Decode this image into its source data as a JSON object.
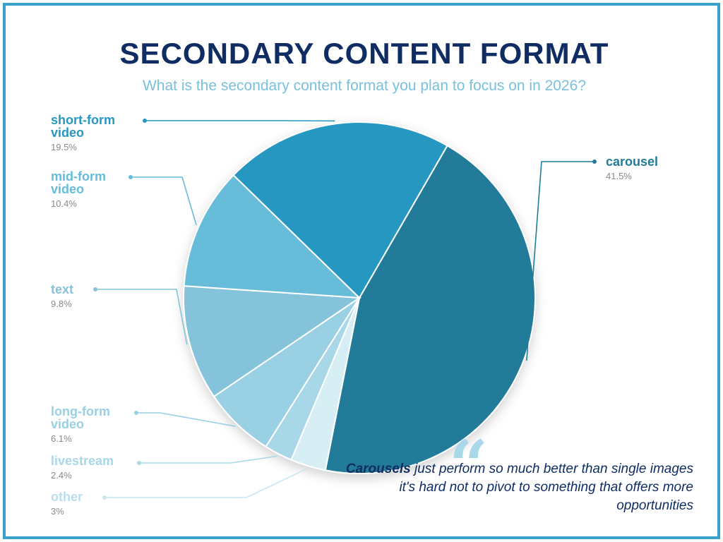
{
  "chart_data": {
    "type": "pie",
    "title": "SECONDARY CONTENT FORMAT",
    "subtitle": "What is the secondary content format you plan to focus on in 2026?",
    "slices": [
      {
        "label": "carousel",
        "pct_label": "41.5%",
        "value": 41.5,
        "color": "#217b99"
      },
      {
        "label": "other",
        "pct_label": "3%",
        "value": 3,
        "color": "#d7eef5"
      },
      {
        "label": "livestream",
        "pct_label": "2.4%",
        "value": 2.4,
        "color": "#a8d8e8"
      },
      {
        "label": "long-form\nvideo",
        "pct_label": "6.1%",
        "value": 6.1,
        "color": "#9ad0e3"
      },
      {
        "label": "text",
        "pct_label": "9.8%",
        "value": 9.8,
        "color": "#84c3da"
      },
      {
        "label": "mid-form\nvideo",
        "pct_label": "10.4%",
        "value": 10.4,
        "color": "#66bcd9"
      },
      {
        "label": "short-form\nvideo",
        "pct_label": "19.5%",
        "value": 19.5,
        "color": "#2797c0"
      }
    ]
  },
  "quote": {
    "highlight": "Carousels",
    "rest": " just perform so much better than single images it's hard not to pivot to something that offers more opportunities"
  },
  "colors": {
    "frame": "#3aa0cc",
    "title": "#0f2d63",
    "subtitle": "#79c0dc"
  }
}
